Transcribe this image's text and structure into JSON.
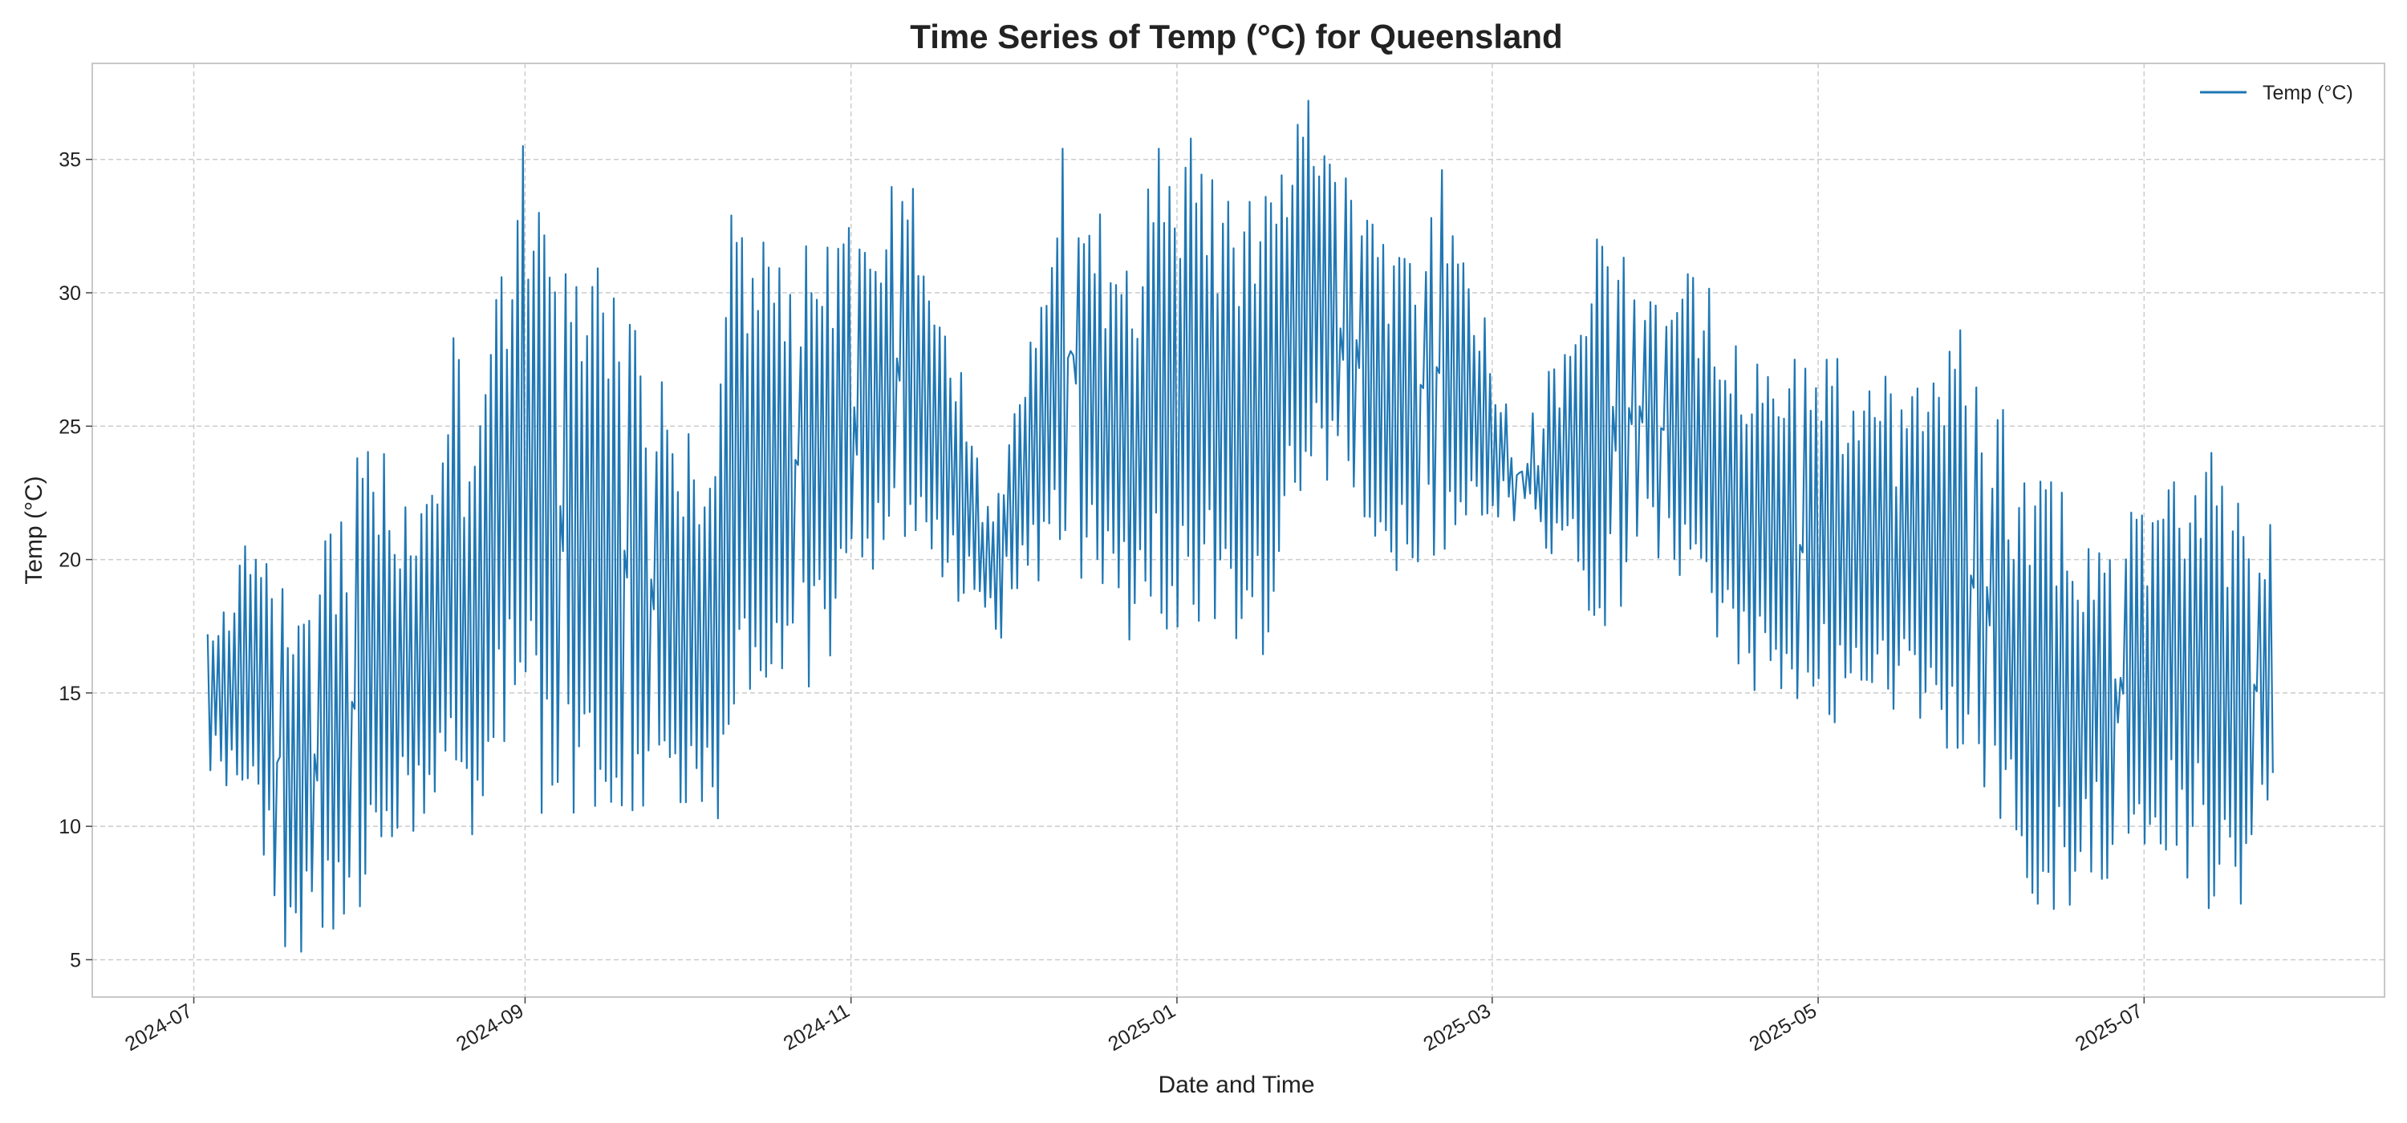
{
  "chart_data": {
    "type": "line",
    "title": "Time Series of Temp (°C) for Queensland",
    "xlabel": "Date and Time",
    "ylabel": "Temp (°C)",
    "x_tick_labels": [
      "2024-07",
      "2024-09",
      "2024-11",
      "2025-01",
      "2025-03",
      "2025-05",
      "2025-07"
    ],
    "x_ticks": [
      "2024-07-01",
      "2024-09-01",
      "2024-11-01",
      "2025-01-01",
      "2025-03-01",
      "2025-05-01",
      "2025-07-01"
    ],
    "y_ticks": [
      5,
      10,
      15,
      20,
      25,
      30,
      35
    ],
    "xlim": [
      "2024-06-12",
      "2025-08-15"
    ],
    "ylim": [
      3.6,
      38.6
    ],
    "grid": true,
    "legend": {
      "position": "top-right",
      "entries": [
        "Temp (°C)"
      ]
    },
    "series": [
      {
        "name": "Temp (°C)",
        "color": "#1f77b4",
        "sampling": "every 12 hours (daily max / min, approximate)",
        "start": "2024-07-03",
        "end": "2025-07-24",
        "values": [
          {
            "x": "2024-07-03",
            "daily_max_min": [
              17.2,
              12.1
            ]
          },
          {
            "x": "2024-07-10",
            "daily_max_min": [
              20.5,
              11.8
            ]
          },
          {
            "x": "2024-07-17",
            "daily_max_min": [
              18.9,
              5.5
            ]
          },
          {
            "x": "2024-07-20",
            "daily_max_min": [
              17.5,
              5.3
            ]
          },
          {
            "x": "2024-07-31",
            "daily_max_min": [
              23.8,
              7.0
            ]
          },
          {
            "x": "2024-08-14",
            "daily_max_min": [
              22.4,
              11.3
            ]
          },
          {
            "x": "2024-08-18",
            "daily_max_min": [
              28.3,
              12.5
            ]
          },
          {
            "x": "2024-08-21",
            "daily_max_min": [
              22.9,
              9.7
            ]
          },
          {
            "x": "2024-08-31",
            "daily_max_min": [
              35.5,
              15.8
            ]
          },
          {
            "x": "2024-09-03",
            "daily_max_min": [
              33.0,
              10.5
            ]
          },
          {
            "x": "2024-09-20",
            "daily_max_min": [
              28.8,
              10.6
            ]
          },
          {
            "x": "2024-10-06",
            "daily_max_min": [
              23.1,
              10.3
            ]
          },
          {
            "x": "2024-10-09",
            "daily_max_min": [
              32.9,
              14.6
            ]
          },
          {
            "x": "2024-10-27",
            "daily_max_min": [
              31.7,
              16.4
            ]
          },
          {
            "x": "2024-11-12",
            "daily_max_min": [
              33.9,
              21.1
            ]
          },
          {
            "x": "2024-11-27",
            "daily_max_min": [
              21.4,
              17.4
            ]
          },
          {
            "x": "2024-12-10",
            "daily_max_min": [
              35.4,
              21.1
            ]
          },
          {
            "x": "2024-12-22",
            "daily_max_min": [
              30.8,
              17.0
            ]
          },
          {
            "x": "2024-12-28",
            "daily_max_min": [
              35.4,
              18.0
            ]
          },
          {
            "x": "2025-01-17",
            "daily_max_min": [
              33.6,
              17.3
            ]
          },
          {
            "x": "2025-01-23",
            "daily_max_min": [
              36.3,
              22.6
            ]
          },
          {
            "x": "2025-01-25",
            "daily_max_min": [
              37.2,
              23.9
            ]
          },
          {
            "x": "2025-02-10",
            "daily_max_min": [
              31.0,
              19.6
            ]
          },
          {
            "x": "2025-02-19",
            "daily_max_min": [
              34.6,
              20.4
            ]
          },
          {
            "x": "2025-03-06",
            "daily_max_min": [
              23.3,
              22.3
            ]
          },
          {
            "x": "2025-03-20",
            "daily_max_min": [
              32.0,
              18.2
            ]
          },
          {
            "x": "2025-04-06",
            "daily_max_min": [
              30.7,
              20.4
            ]
          },
          {
            "x": "2025-04-15",
            "daily_max_min": [
              28.0,
              16.1
            ]
          },
          {
            "x": "2025-04-26",
            "daily_max_min": [
              27.5,
              14.8
            ]
          },
          {
            "x": "2025-05-14",
            "daily_max_min": [
              26.2,
              14.4
            ]
          },
          {
            "x": "2025-05-27",
            "daily_max_min": [
              28.6,
              13.1
            ]
          },
          {
            "x": "2025-06-10",
            "daily_max_min": [
              22.0,
              7.1
            ]
          },
          {
            "x": "2025-06-13",
            "daily_max_min": [
              22.9,
              6.9
            ]
          },
          {
            "x": "2025-06-20",
            "daily_max_min": [
              20.4,
              8.3
            ]
          },
          {
            "x": "2025-07-06",
            "daily_max_min": [
              22.9,
              9.3
            ]
          },
          {
            "x": "2025-07-13",
            "daily_max_min": [
              24.0,
              7.4
            ]
          },
          {
            "x": "2025-07-18",
            "daily_max_min": [
              22.1,
              7.1
            ]
          },
          {
            "x": "2025-07-24",
            "daily_max_min": [
              21.3,
              12.0
            ]
          }
        ]
      }
    ]
  }
}
